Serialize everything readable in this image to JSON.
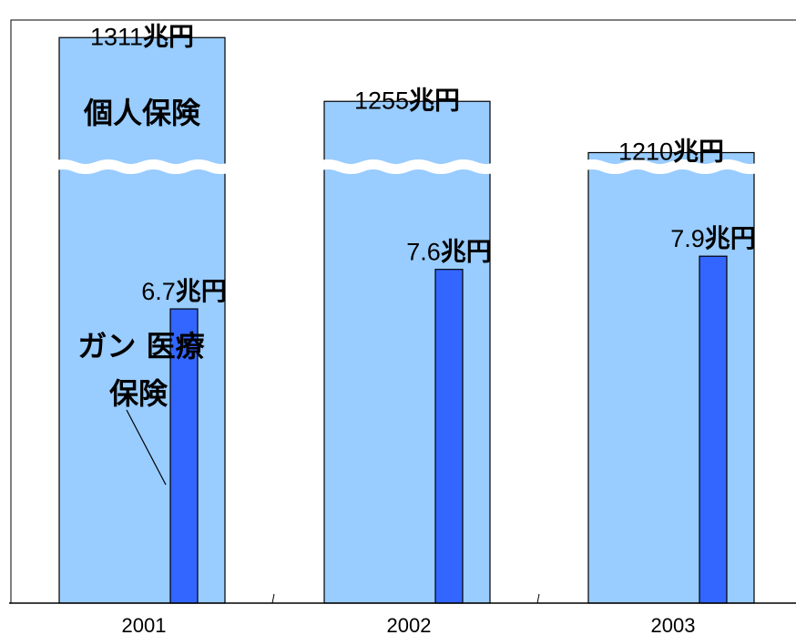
{
  "chart_data": {
    "type": "bar",
    "categories": [
      "2001",
      "2002",
      "2003"
    ],
    "unit": "兆円",
    "series": [
      {
        "name": "個人保険",
        "values": [
          1311,
          1255,
          1210
        ]
      },
      {
        "name": "ガン 医療 保険",
        "values": [
          6.7,
          7.6,
          7.9
        ]
      }
    ],
    "axis_break": true,
    "grid": false,
    "legend": "none",
    "annotations": {
      "big_series_label": "個人保険",
      "small_series_label_line1": "ガン 医療",
      "small_series_label_line2": "保険"
    },
    "colors": {
      "big_bar": "#99ccff",
      "small_bar": "#3366ff",
      "stroke": "#000000",
      "break_band": "#ffffff"
    }
  }
}
